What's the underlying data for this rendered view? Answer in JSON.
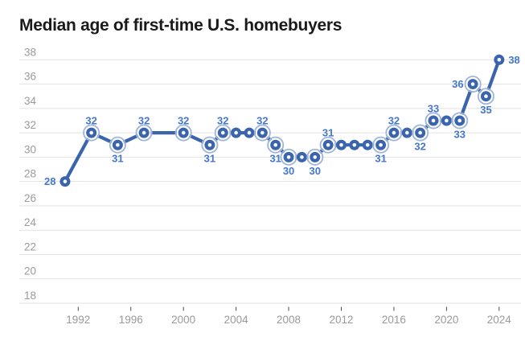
{
  "colors": {
    "background": "#ffffff",
    "title_text": "#1a1a1a",
    "line": "#3a65ad",
    "marker_fill": "#3a65ad",
    "marker_hole": "#ffffff",
    "halo_ring": "#9fb4da",
    "data_label": "#4577cd",
    "gridline": "#e2e2e2",
    "axis_text": "#9a9a9a",
    "tick_mark": "#4d4d4d"
  },
  "chart_data": {
    "type": "line",
    "title": "Median age of first-time U.S. homebuyers",
    "xlabel": "",
    "ylabel": "",
    "legend": "none",
    "grid": "horizontal",
    "ylim": [
      18,
      38
    ],
    "yticks": [
      38,
      36,
      34,
      32,
      30,
      28,
      26,
      24,
      22,
      20,
      18
    ],
    "xticks": [
      1992,
      1996,
      2000,
      2004,
      2008,
      2012,
      2016,
      2020,
      2024
    ],
    "x": [
      1991,
      1993,
      1995,
      1997,
      2000,
      2002,
      2003,
      2004,
      2005,
      2006,
      2007,
      2008,
      2009,
      2010,
      2011,
      2012,
      2013,
      2014,
      2015,
      2016,
      2017,
      2018,
      2019,
      2020,
      2021,
      2022,
      2023,
      2024
    ],
    "values": [
      28,
      32,
      31,
      32,
      32,
      31,
      32,
      32,
      32,
      32,
      31,
      30,
      30,
      30,
      31,
      31,
      31,
      31,
      31,
      32,
      32,
      32,
      33,
      33,
      33,
      36,
      35,
      38
    ],
    "points": [
      {
        "year": 1991,
        "value": 28,
        "label": "28",
        "label_pos": "left",
        "halo": false
      },
      {
        "year": 1993,
        "value": 32,
        "label": "32",
        "label_pos": "above",
        "halo": true
      },
      {
        "year": 1995,
        "value": 31,
        "label": "31",
        "label_pos": "below",
        "halo": true
      },
      {
        "year": 1997,
        "value": 32,
        "label": "32",
        "label_pos": "above",
        "halo": true
      },
      {
        "year": 2000,
        "value": 32,
        "label": "32",
        "label_pos": "above",
        "halo": true
      },
      {
        "year": 2002,
        "value": 31,
        "label": "31",
        "label_pos": "below",
        "halo": true
      },
      {
        "year": 2003,
        "value": 32,
        "label": "32",
        "label_pos": "above",
        "halo": true
      },
      {
        "year": 2004,
        "value": 32,
        "label": null,
        "label_pos": null,
        "halo": false
      },
      {
        "year": 2005,
        "value": 32,
        "label": null,
        "label_pos": null,
        "halo": false
      },
      {
        "year": 2006,
        "value": 32,
        "label": "32",
        "label_pos": "above",
        "halo": true
      },
      {
        "year": 2007,
        "value": 31,
        "label": "31",
        "label_pos": "below",
        "halo": true
      },
      {
        "year": 2008,
        "value": 30,
        "label": "30",
        "label_pos": "below",
        "halo": true
      },
      {
        "year": 2009,
        "value": 30,
        "label": null,
        "label_pos": null,
        "halo": false
      },
      {
        "year": 2010,
        "value": 30,
        "label": "30",
        "label_pos": "below",
        "halo": true
      },
      {
        "year": 2011,
        "value": 31,
        "label": "31",
        "label_pos": "above",
        "halo": true
      },
      {
        "year": 2012,
        "value": 31,
        "label": null,
        "label_pos": null,
        "halo": false
      },
      {
        "year": 2013,
        "value": 31,
        "label": null,
        "label_pos": null,
        "halo": false
      },
      {
        "year": 2014,
        "value": 31,
        "label": null,
        "label_pos": null,
        "halo": false
      },
      {
        "year": 2015,
        "value": 31,
        "label": "31",
        "label_pos": "below",
        "halo": true
      },
      {
        "year": 2016,
        "value": 32,
        "label": "32",
        "label_pos": "above",
        "halo": true
      },
      {
        "year": 2017,
        "value": 32,
        "label": null,
        "label_pos": null,
        "halo": false
      },
      {
        "year": 2018,
        "value": 32,
        "label": "32",
        "label_pos": "below",
        "halo": true
      },
      {
        "year": 2019,
        "value": 33,
        "label": "33",
        "label_pos": "above",
        "halo": true
      },
      {
        "year": 2020,
        "value": 33,
        "label": null,
        "label_pos": null,
        "halo": false
      },
      {
        "year": 2021,
        "value": 33,
        "label": "33",
        "label_pos": "below",
        "halo": true
      },
      {
        "year": 2022,
        "value": 36,
        "label": "36",
        "label_pos": "left",
        "halo": true
      },
      {
        "year": 2023,
        "value": 35,
        "label": "35",
        "label_pos": "below",
        "halo": true
      },
      {
        "year": 2024,
        "value": 38,
        "label": "38",
        "label_pos": "right",
        "halo": false
      }
    ]
  }
}
